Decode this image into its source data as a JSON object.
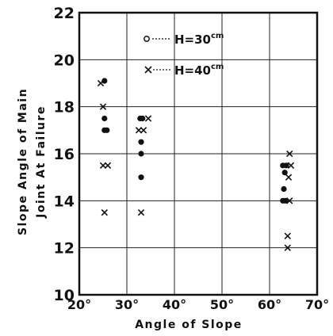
{
  "chart_data": {
    "type": "scatter",
    "xlabel": "Angle of Slope",
    "ylabel_line1": "Slope Angle of Main",
    "ylabel_line2": "Joint At Failure",
    "xlim": [
      20,
      70
    ],
    "ylim": [
      10,
      22
    ],
    "x_ticks": [
      {
        "value": 20,
        "label": "20°"
      },
      {
        "value": 30,
        "label": "30°"
      },
      {
        "value": 40,
        "label": "40°"
      },
      {
        "value": 50,
        "label": "50°"
      },
      {
        "value": 60,
        "label": "60°"
      },
      {
        "value": 70,
        "label": "70°"
      }
    ],
    "y_ticks": [
      {
        "value": 10,
        "label": "10"
      },
      {
        "value": 12,
        "label": "12"
      },
      {
        "value": 14,
        "label": "14"
      },
      {
        "value": 16,
        "label": "16"
      },
      {
        "value": 18,
        "label": "18"
      },
      {
        "value": 20,
        "label": "20"
      },
      {
        "value": 22,
        "label": "22"
      }
    ],
    "grid": true,
    "legend_position": "top-center",
    "series": [
      {
        "name": "H=30 cm",
        "legend_main": "H=30",
        "legend_unit": "cm",
        "marker": "filled-circle",
        "points": [
          {
            "x": 25.3,
            "y": 19.1
          },
          {
            "x": 25.3,
            "y": 17.5
          },
          {
            "x": 25.3,
            "y": 17.0
          },
          {
            "x": 25.8,
            "y": 17.0
          },
          {
            "x": 32.8,
            "y": 17.5
          },
          {
            "x": 33.3,
            "y": 17.5
          },
          {
            "x": 33.0,
            "y": 16.5
          },
          {
            "x": 33.0,
            "y": 16.0
          },
          {
            "x": 33.0,
            "y": 15.0
          },
          {
            "x": 62.8,
            "y": 15.5
          },
          {
            "x": 63.2,
            "y": 15.2
          },
          {
            "x": 63.0,
            "y": 14.5
          },
          {
            "x": 62.8,
            "y": 14.0
          },
          {
            "x": 63.3,
            "y": 14.0
          },
          {
            "x": 63.5,
            "y": 15.5
          }
        ]
      },
      {
        "name": "H=40 cm",
        "legend_main": "H=40",
        "legend_unit": "cm",
        "marker": "x",
        "points": [
          {
            "x": 24.5,
            "y": 19.0
          },
          {
            "x": 25.0,
            "y": 18.0
          },
          {
            "x": 25.0,
            "y": 15.5
          },
          {
            "x": 26.0,
            "y": 15.5
          },
          {
            "x": 25.3,
            "y": 13.5
          },
          {
            "x": 32.5,
            "y": 17.0
          },
          {
            "x": 33.5,
            "y": 17.0
          },
          {
            "x": 34.5,
            "y": 17.5
          },
          {
            "x": 33.0,
            "y": 13.5
          },
          {
            "x": 64.2,
            "y": 16.0
          },
          {
            "x": 64.5,
            "y": 15.5
          },
          {
            "x": 64.0,
            "y": 15.0
          },
          {
            "x": 64.2,
            "y": 14.0
          },
          {
            "x": 63.8,
            "y": 12.5
          },
          {
            "x": 63.8,
            "y": 12.0
          }
        ]
      }
    ]
  }
}
